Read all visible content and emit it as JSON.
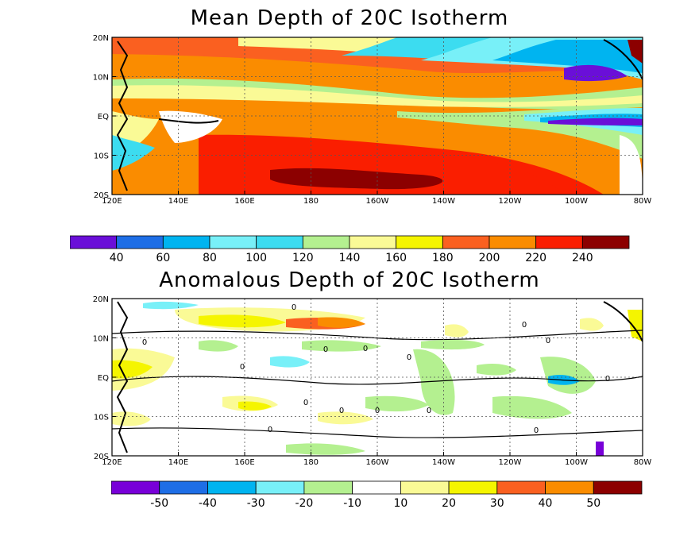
{
  "chart_data": [
    {
      "type": "contour",
      "title": "Mean Depth of 20C Isotherm",
      "xlabel": "",
      "ylabel": "",
      "x_ticks": [
        "120E",
        "140E",
        "160E",
        "180",
        "160W",
        "140W",
        "120W",
        "100W",
        "80W"
      ],
      "y_ticks": [
        "20N",
        "10N",
        "EQ",
        "10S",
        "20S"
      ],
      "xlim": [
        "120E",
        "80W"
      ],
      "ylim": [
        "20S",
        "20N"
      ],
      "grid": true,
      "colorbar": {
        "levels": [
          "40",
          "60",
          "80",
          "100",
          "120",
          "140",
          "160",
          "180",
          "200",
          "220",
          "240"
        ],
        "colors": [
          "#6a0fd8",
          "#1e6ee6",
          "#00b4f0",
          "#78f0f8",
          "#3cdcf0",
          "#b4f090",
          "#fafa96",
          "#f5f500",
          "#fa6020",
          "#fa8c00",
          "#fa1e00",
          "#8c0000"
        ]
      }
    },
    {
      "type": "contour",
      "title": "Anomalous Depth of 20C Isotherm",
      "xlabel": "",
      "ylabel": "",
      "x_ticks": [
        "120E",
        "140E",
        "160E",
        "180",
        "160W",
        "140W",
        "120W",
        "100W",
        "80W"
      ],
      "y_ticks": [
        "20N",
        "10N",
        "EQ",
        "10S",
        "20S"
      ],
      "xlim": [
        "120E",
        "80W"
      ],
      "ylim": [
        "20S",
        "20N"
      ],
      "grid": true,
      "contour_label": "0",
      "colorbar": {
        "levels": [
          "-50",
          "-40",
          "-30",
          "-20",
          "-10",
          "10",
          "20",
          "30",
          "40",
          "50"
        ],
        "colors": [
          "#7800d8",
          "#1e6ee6",
          "#00b4f0",
          "#78f0f8",
          "#b4f090",
          "#ffffff",
          "#fafa96",
          "#f5f500",
          "#fa6020",
          "#fa8c00",
          "#8c0000"
        ]
      }
    }
  ]
}
